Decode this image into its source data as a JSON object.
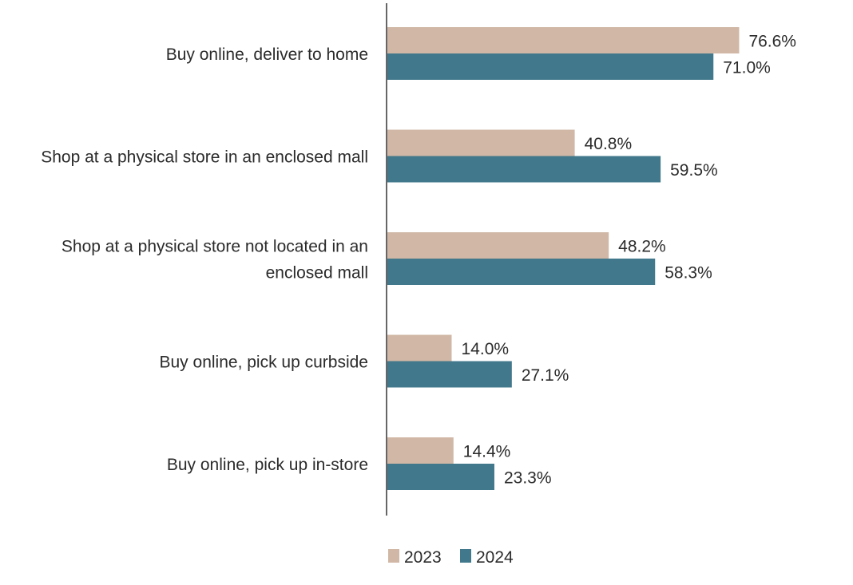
{
  "chart_data": {
    "type": "bar",
    "orientation": "horizontal",
    "title": "",
    "xlabel": "",
    "ylabel": "",
    "xlim": [
      0,
      100
    ],
    "grid": false,
    "legend_position": "bottom",
    "categories": [
      [
        "Buy online, deliver to home"
      ],
      [
        "Shop at a physical store in an enclosed mall"
      ],
      [
        "Shop at a physical store not located in an",
        "enclosed mall"
      ],
      [
        "Buy online, pick up curbside"
      ],
      [
        "Buy online, pick up in-store"
      ]
    ],
    "series": [
      {
        "name": "2023",
        "color": "#d1b8a6",
        "values": [
          76.6,
          40.8,
          48.2,
          14.0,
          14.4
        ],
        "labels": [
          "76.6%",
          "40.8%",
          "48.2%",
          "14.0%",
          "14.4%"
        ]
      },
      {
        "name": "2024",
        "color": "#41788b",
        "values": [
          71.0,
          59.5,
          58.3,
          27.1,
          23.3
        ],
        "labels": [
          "71.0%",
          "59.5%",
          "58.3%",
          "27.1%",
          "23.3%"
        ]
      }
    ],
    "axis_color": "#666666"
  }
}
